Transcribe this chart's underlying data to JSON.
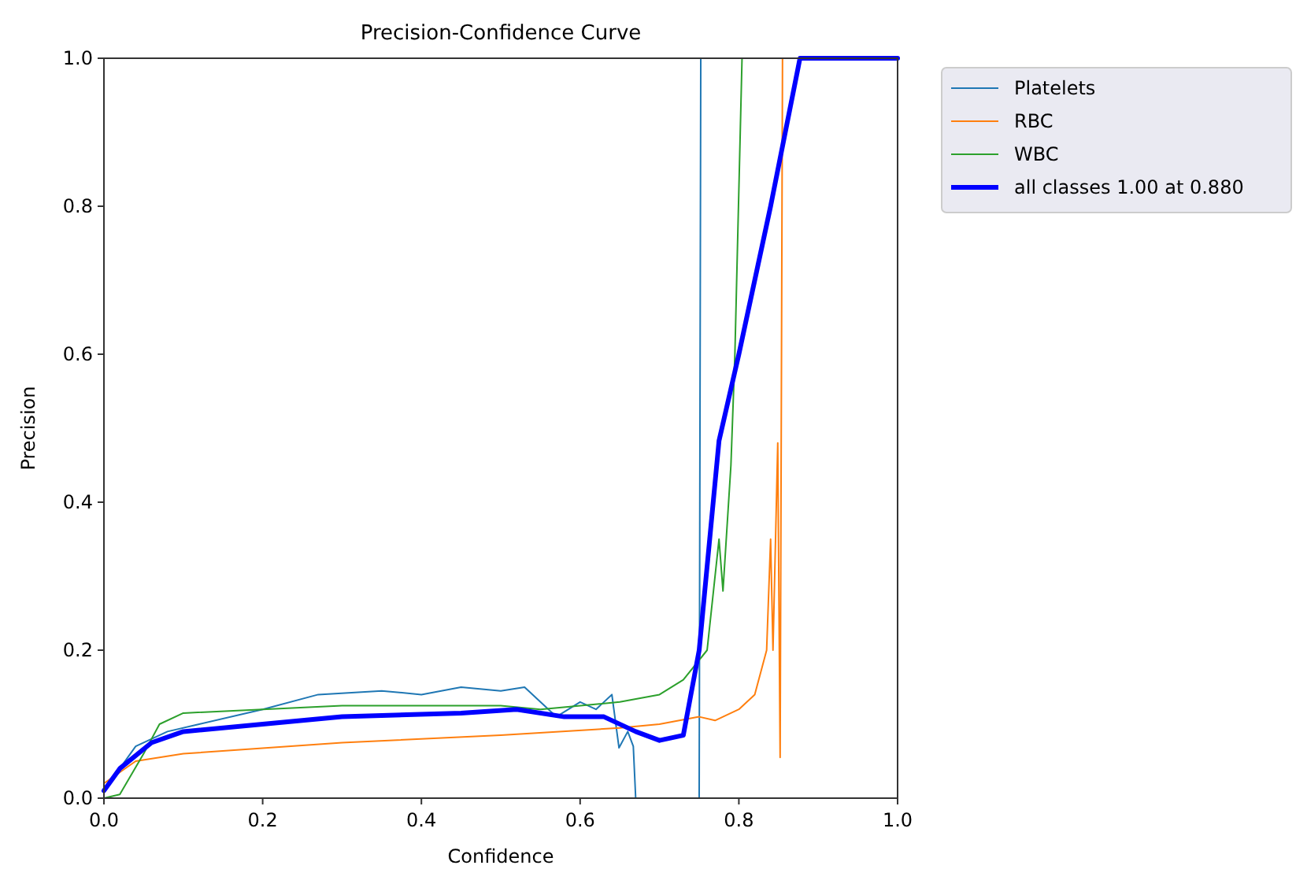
{
  "chart_data": {
    "type": "line",
    "title": "Precision-Confidence Curve",
    "xlabel": "Confidence",
    "ylabel": "Precision",
    "xlim": [
      0,
      1
    ],
    "ylim": [
      0,
      1
    ],
    "xticks": [
      {
        "value": 0,
        "label": "0.0"
      },
      0.2,
      0.4,
      0.6,
      0.8,
      {
        "value": 1,
        "label": "1.0"
      }
    ],
    "yticks": [
      {
        "value": 0,
        "label": "0.0"
      },
      0.2,
      0.4,
      0.6,
      0.8,
      {
        "value": 1,
        "label": "1.0"
      }
    ],
    "grid": false,
    "legend": "top right",
    "marker": "none",
    "line_style": "solid",
    "series": [
      {
        "name": "Platelets",
        "color": "#1f77b4",
        "x": [
          0,
          0.02,
          0.04,
          0.08,
          0.12,
          0.2,
          0.27,
          0.35,
          0.4,
          0.45,
          0.5,
          0.53,
          0.55,
          0.57,
          0.6,
          0.62,
          0.64,
          0.649,
          0.66,
          0.667,
          0.67,
          0.75,
          0.752,
          1
        ],
        "values": [
          0.01,
          0.04,
          0.07,
          0.09,
          0.1,
          0.12,
          0.14,
          0.145,
          0.14,
          0.15,
          0.145,
          0.15,
          0.13,
          0.11,
          0.13,
          0.12,
          0.14,
          0.068,
          0.09,
          0.07,
          0,
          0,
          1,
          1
        ]
      },
      {
        "name": "RBC",
        "color": "#ff7f0e",
        "x": [
          0,
          0.04,
          0.1,
          0.3,
          0.5,
          0.65,
          0.7,
          0.75,
          0.77,
          0.8,
          0.82,
          0.835,
          0.84,
          0.843,
          0.849,
          0.852,
          0.855
        ],
        "values": [
          0.02,
          0.05,
          0.06,
          0.075,
          0.085,
          0.095,
          0.1,
          0.11,
          0.105,
          0.12,
          0.14,
          0.2,
          0.35,
          0.2,
          0.48,
          0.055,
          1
        ]
      },
      {
        "name": "WBC",
        "color": "#2ca02c",
        "x": [
          0,
          0.02,
          0.05,
          0.07,
          0.1,
          0.2,
          0.3,
          0.5,
          0.55,
          0.65,
          0.7,
          0.73,
          0.76,
          0.775,
          0.78,
          0.79,
          0.795,
          0.804
        ],
        "values": [
          0,
          0.005,
          0.06,
          0.1,
          0.115,
          0.12,
          0.125,
          0.125,
          0.12,
          0.13,
          0.14,
          0.16,
          0.2,
          0.35,
          0.28,
          0.45,
          0.6,
          1
        ]
      },
      {
        "name": "all classes 1.00 at 0.880",
        "color": "#0000ff",
        "x": [
          0,
          0.02,
          0.06,
          0.1,
          0.2,
          0.3,
          0.45,
          0.52,
          0.58,
          0.63,
          0.67,
          0.7,
          0.73,
          0.75,
          0.775,
          0.8,
          0.84,
          0.877,
          1
        ],
        "values": [
          0.01,
          0.04,
          0.075,
          0.09,
          0.1,
          0.11,
          0.115,
          0.12,
          0.11,
          0.11,
          0.09,
          0.078,
          0.085,
          0.2,
          0.483,
          0.6,
          0.8,
          1,
          1
        ]
      }
    ]
  }
}
